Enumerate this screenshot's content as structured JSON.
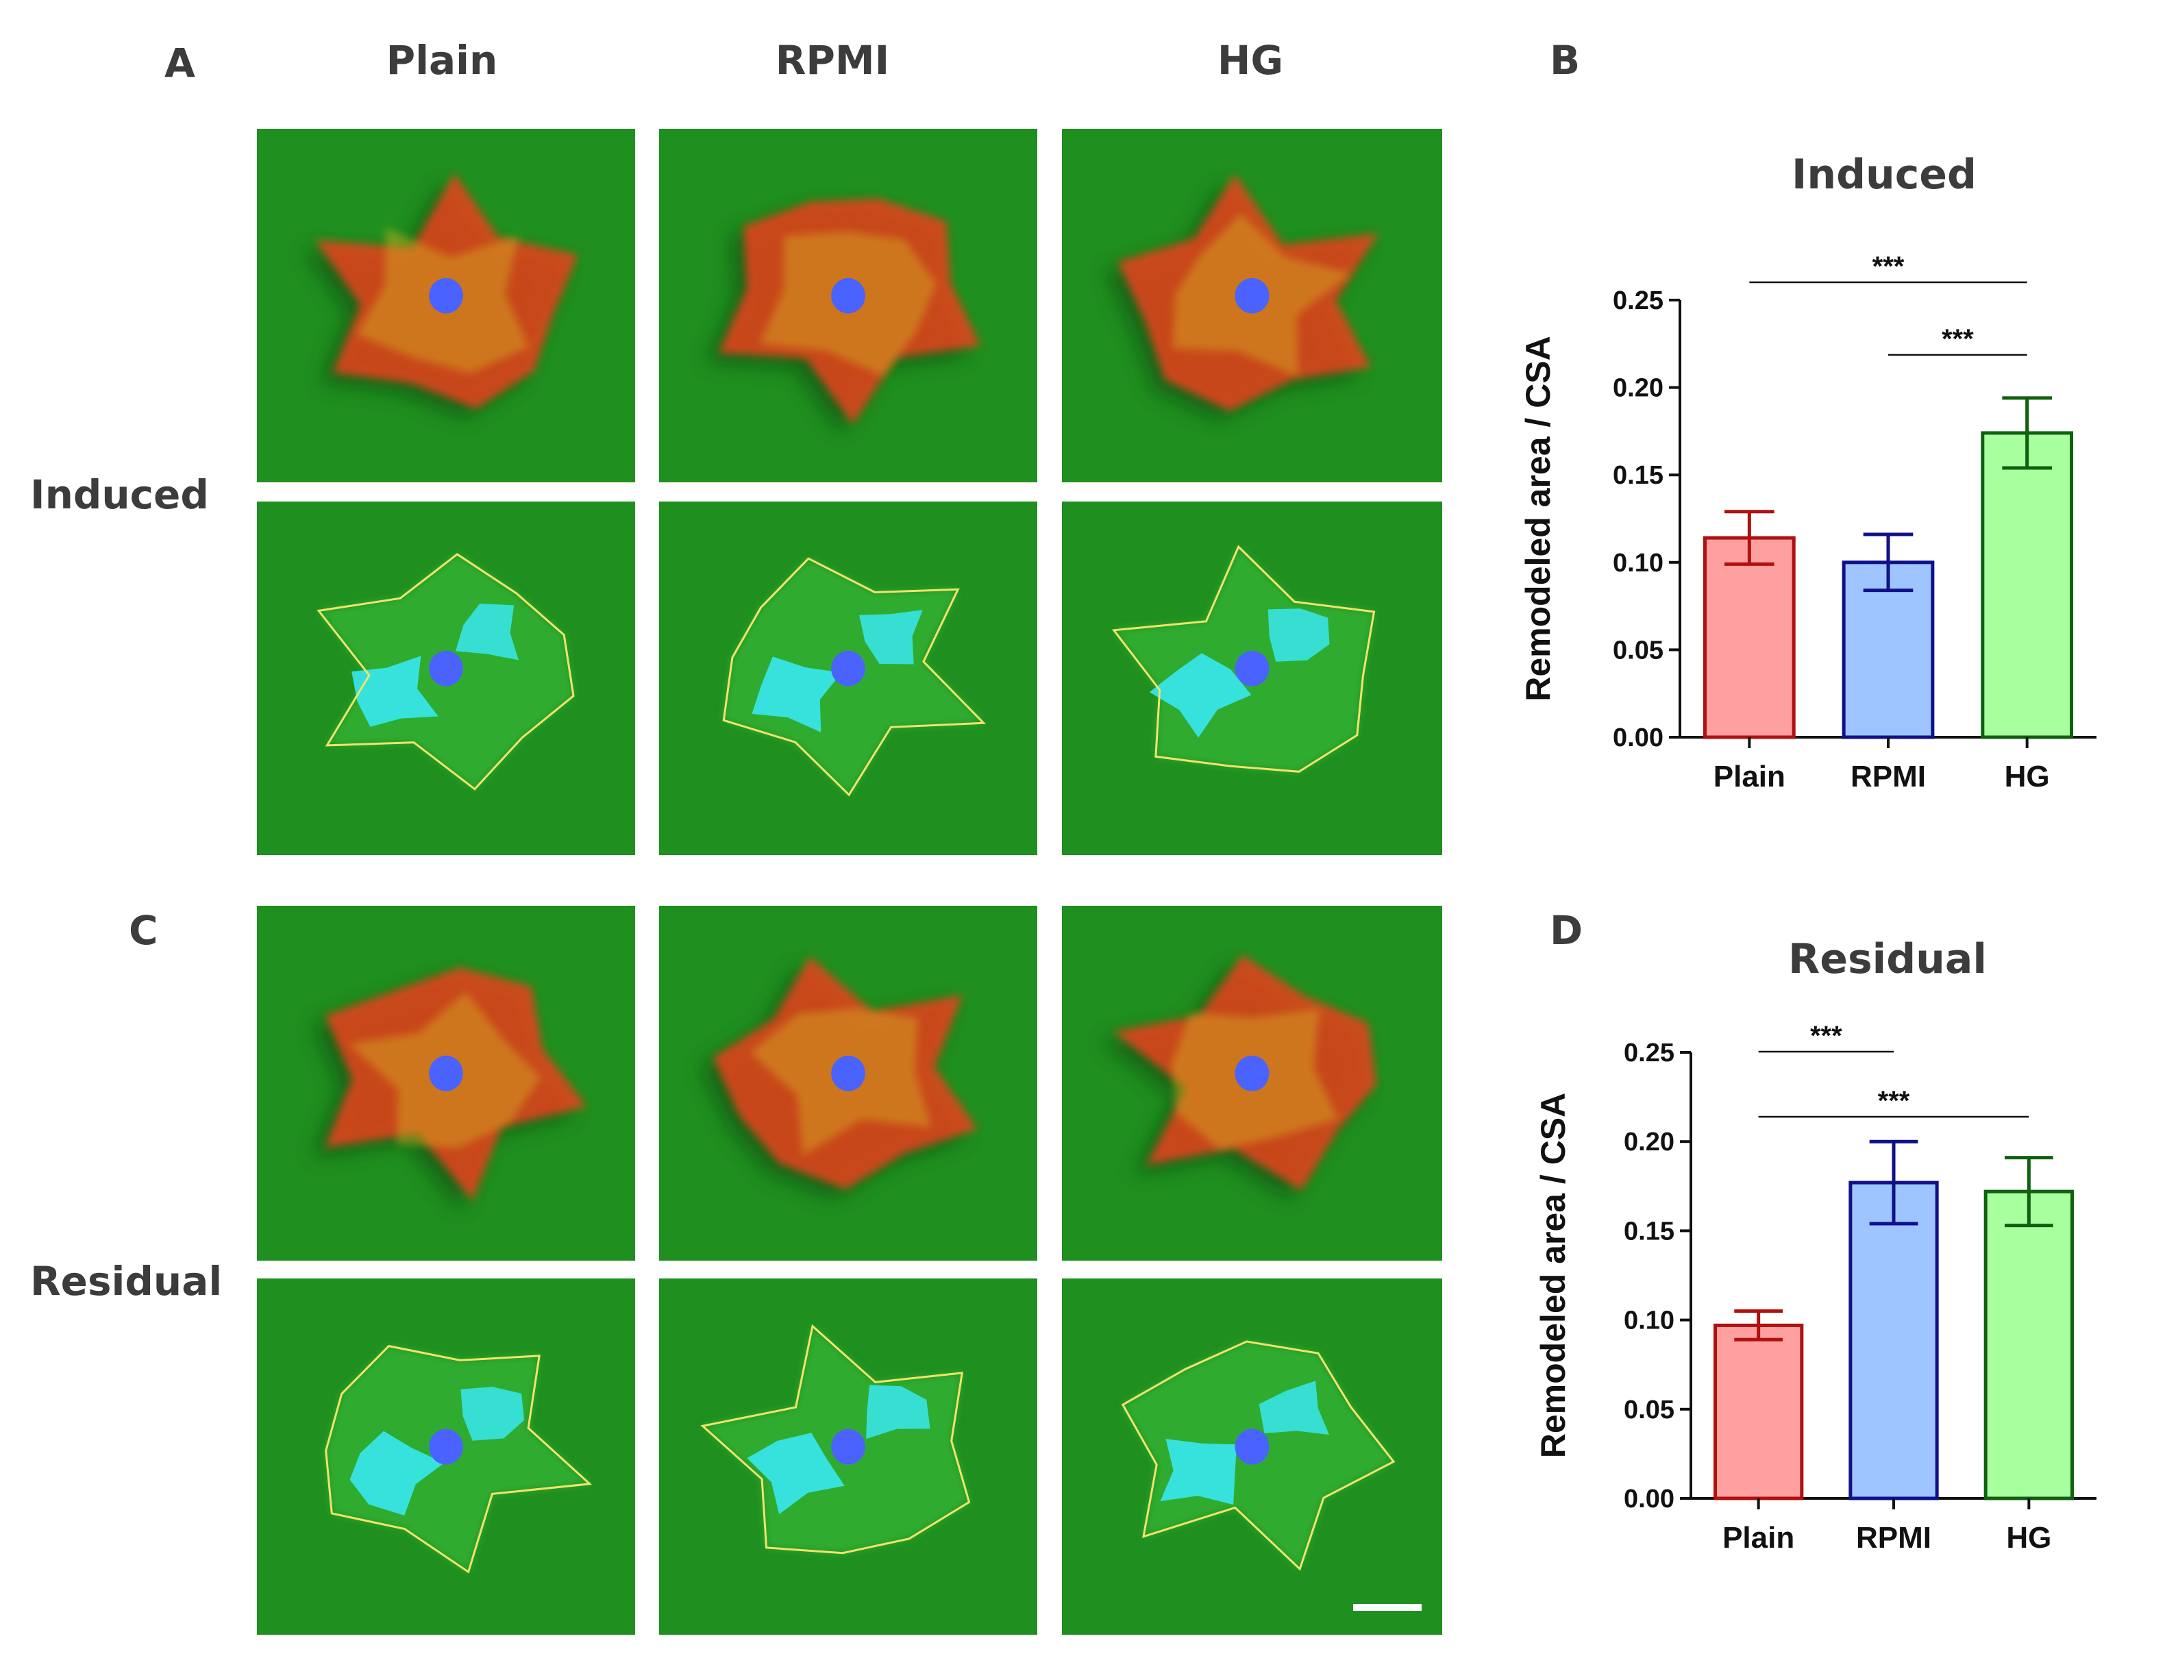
{
  "panels": {
    "A": "A",
    "B": "B",
    "C": "C",
    "D": "D"
  },
  "columns": [
    "Plain",
    "RPMI",
    "HG"
  ],
  "rows": [
    "Induced",
    "Residual"
  ],
  "micrograph_colors": {
    "background": "#1f8f1f",
    "actin": "#e8421c",
    "nucleus": "#4a63ff",
    "remodeled": "#38e8f0",
    "outline": "#f2e36b"
  },
  "chart_data": [
    {
      "type": "bar",
      "title": "Induced",
      "ylabel": "Remodeled area / CSA",
      "categories": [
        "Plain",
        "RPMI",
        "HG"
      ],
      "values": [
        0.114,
        0.1,
        0.174
      ],
      "errors": [
        0.015,
        0.016,
        0.02
      ],
      "ylim": [
        0,
        0.25
      ],
      "yticks": [
        "0.00",
        "0.05",
        "0.10",
        "0.15",
        "0.20",
        "0.25"
      ],
      "fill_colors": [
        "#ffa0a0",
        "#9ec5ff",
        "#a8ff9e"
      ],
      "edge_colors": [
        "#b01010",
        "#10108a",
        "#106010"
      ],
      "significance": [
        {
          "from": 0,
          "to": 2,
          "label": "***"
        },
        {
          "from": 1,
          "to": 2,
          "label": "***"
        }
      ]
    },
    {
      "type": "bar",
      "title": "Residual",
      "ylabel": "Remodeled area / CSA",
      "categories": [
        "Plain",
        "RPMI",
        "HG"
      ],
      "values": [
        0.097,
        0.177,
        0.172
      ],
      "errors": [
        0.008,
        0.023,
        0.019
      ],
      "ylim": [
        0,
        0.25
      ],
      "yticks": [
        "0.00",
        "0.05",
        "0.10",
        "0.15",
        "0.20",
        "0.25"
      ],
      "fill_colors": [
        "#ffa0a0",
        "#9ec5ff",
        "#a8ff9e"
      ],
      "edge_colors": [
        "#b01010",
        "#10108a",
        "#106010"
      ],
      "significance": [
        {
          "from": 0,
          "to": 1,
          "label": "***"
        },
        {
          "from": 0,
          "to": 2,
          "label": "***"
        }
      ]
    }
  ]
}
